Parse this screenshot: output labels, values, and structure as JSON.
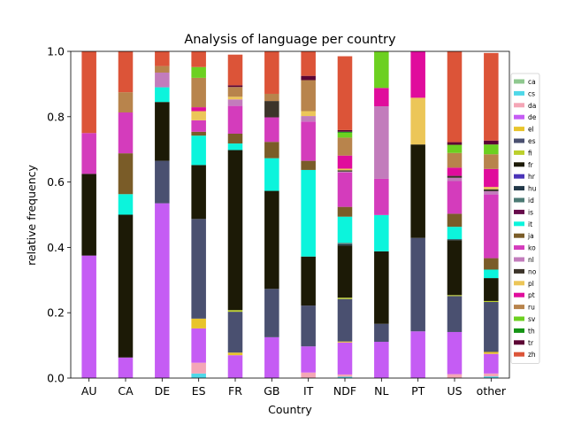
{
  "chart_data": {
    "type": "bar",
    "stacked": true,
    "title": "Analysis of language per country",
    "xlabel": "Country",
    "ylabel": "relative frequency",
    "ylim": [
      0,
      1
    ],
    "yticks": [
      "0.0",
      "0.2",
      "0.4",
      "0.6",
      "0.8",
      "1.0"
    ],
    "grid": false,
    "legend_position": "right",
    "categories": [
      "AU",
      "CA",
      "DE",
      "ES",
      "FR",
      "GB",
      "IT",
      "NDF",
      "NL",
      "PT",
      "US",
      "other"
    ],
    "series": [
      {
        "name": "ca",
        "color": "#8fc88f",
        "values": [
          0,
          0,
          0,
          0,
          0,
          0,
          0,
          0,
          0,
          0,
          0,
          0
        ]
      },
      {
        "name": "cs",
        "color": "#4fd8e8",
        "values": [
          0,
          0,
          0,
          0.014,
          0,
          0,
          0,
          0.004,
          0,
          0,
          0,
          0.005
        ]
      },
      {
        "name": "da",
        "color": "#f4a6b6",
        "values": [
          0,
          0,
          0,
          0.033,
          0,
          0,
          0.017,
          0.007,
          0,
          0,
          0.012,
          0.009
        ]
      },
      {
        "name": "de",
        "color": "#c55cf4",
        "values": [
          0.375,
          0.063,
          0.535,
          0.105,
          0.07,
          0.125,
          0.08,
          0.098,
          0.111,
          0.143,
          0.129,
          0.06
        ]
      },
      {
        "name": "el",
        "color": "#e8c42c",
        "values": [
          0,
          0,
          0,
          0.03,
          0.008,
          0,
          0,
          0.003,
          0,
          0,
          0,
          0.006
        ]
      },
      {
        "name": "es",
        "color": "#4a5070",
        "values": [
          0,
          0,
          0.13,
          0.305,
          0.125,
          0.148,
          0.125,
          0.13,
          0.055,
          0.286,
          0.11,
          0.153
        ]
      },
      {
        "name": "fi",
        "color": "#bcd02c",
        "values": [
          0,
          0,
          0,
          0,
          0.005,
          0,
          0,
          0.004,
          0,
          0,
          0.003,
          0.003
        ]
      },
      {
        "name": "fr",
        "color": "#1c1a06",
        "values": [
          0.25,
          0.437,
          0.18,
          0.165,
          0.49,
          0.3,
          0.15,
          0.16,
          0.222,
          0.286,
          0.168,
          0.07
        ]
      },
      {
        "name": "hr",
        "color": "#4a34b8",
        "values": [
          0,
          0,
          0,
          0,
          0,
          0,
          0,
          0,
          0,
          0,
          0,
          0
        ]
      },
      {
        "name": "hu",
        "color": "#223848",
        "values": [
          0,
          0,
          0,
          0,
          0,
          0,
          0,
          0.004,
          0,
          0,
          0.003,
          0
        ]
      },
      {
        "name": "id",
        "color": "#4c7a74",
        "values": [
          0,
          0,
          0,
          0,
          0,
          0,
          0,
          0.004,
          0,
          0,
          0,
          0
        ]
      },
      {
        "name": "is",
        "color": "#660a4a",
        "values": [
          0,
          0,
          0,
          0,
          0,
          0,
          0,
          0,
          0,
          0,
          0,
          0
        ]
      },
      {
        "name": "it",
        "color": "#0cf4dc",
        "values": [
          0,
          0.063,
          0.045,
          0.09,
          0.02,
          0.1,
          0.265,
          0.08,
          0.111,
          0,
          0.038,
          0.026
        ]
      },
      {
        "name": "ja",
        "color": "#7a5c28",
        "values": [
          0,
          0.125,
          0,
          0.012,
          0.03,
          0.05,
          0.028,
          0.03,
          0,
          0,
          0.04,
          0.035
        ]
      },
      {
        "name": "ko",
        "color": "#d43cbc",
        "values": [
          0.125,
          0.125,
          0,
          0.035,
          0.085,
          0.075,
          0.12,
          0.105,
          0.111,
          0,
          0.1,
          0.195
        ]
      },
      {
        "name": "nl",
        "color": "#c27cbc",
        "values": [
          0,
          0,
          0.045,
          0,
          0.02,
          0,
          0.017,
          0.003,
          0.222,
          0,
          0.01,
          0.01
        ]
      },
      {
        "name": "no",
        "color": "#3c342a",
        "values": [
          0,
          0,
          0,
          0,
          0,
          0.05,
          0,
          0.004,
          0,
          0,
          0.006,
          0.006
        ]
      },
      {
        "name": "pl",
        "color": "#ecc658",
        "values": [
          0,
          0,
          0,
          0.028,
          0.008,
          0,
          0.015,
          0.005,
          0,
          0.143,
          0,
          0.007
        ]
      },
      {
        "name": "pt",
        "color": "#e00c9c",
        "values": [
          0,
          0,
          0,
          0.012,
          0,
          0,
          0,
          0.04,
          0.056,
          0.142,
          0.025,
          0.055
        ]
      },
      {
        "name": "ru",
        "color": "#b8844c",
        "values": [
          0,
          0.062,
          0.02,
          0.09,
          0.03,
          0.022,
          0.095,
          0.055,
          0,
          0,
          0.045,
          0.045
        ]
      },
      {
        "name": "sv",
        "color": "#6cd020",
        "values": [
          0,
          0,
          0,
          0.033,
          0,
          0,
          0,
          0.015,
          0.111,
          0,
          0.025,
          0.03
        ]
      },
      {
        "name": "th",
        "color": "#149414",
        "values": [
          0,
          0,
          0,
          0,
          0,
          0,
          0,
          0.003,
          0,
          0,
          0,
          0
        ]
      },
      {
        "name": "tr",
        "color": "#5c0434",
        "values": [
          0,
          0,
          0,
          0,
          0.005,
          0,
          0.013,
          0.005,
          0,
          0,
          0.008,
          0.012
        ]
      },
      {
        "name": "zh",
        "color": "#dc5438",
        "values": [
          0.25,
          0.125,
          0.045,
          0.048,
          0.094,
          0.13,
          0.075,
          0.226,
          0.001,
          0,
          0.278,
          0.268
        ]
      }
    ]
  }
}
